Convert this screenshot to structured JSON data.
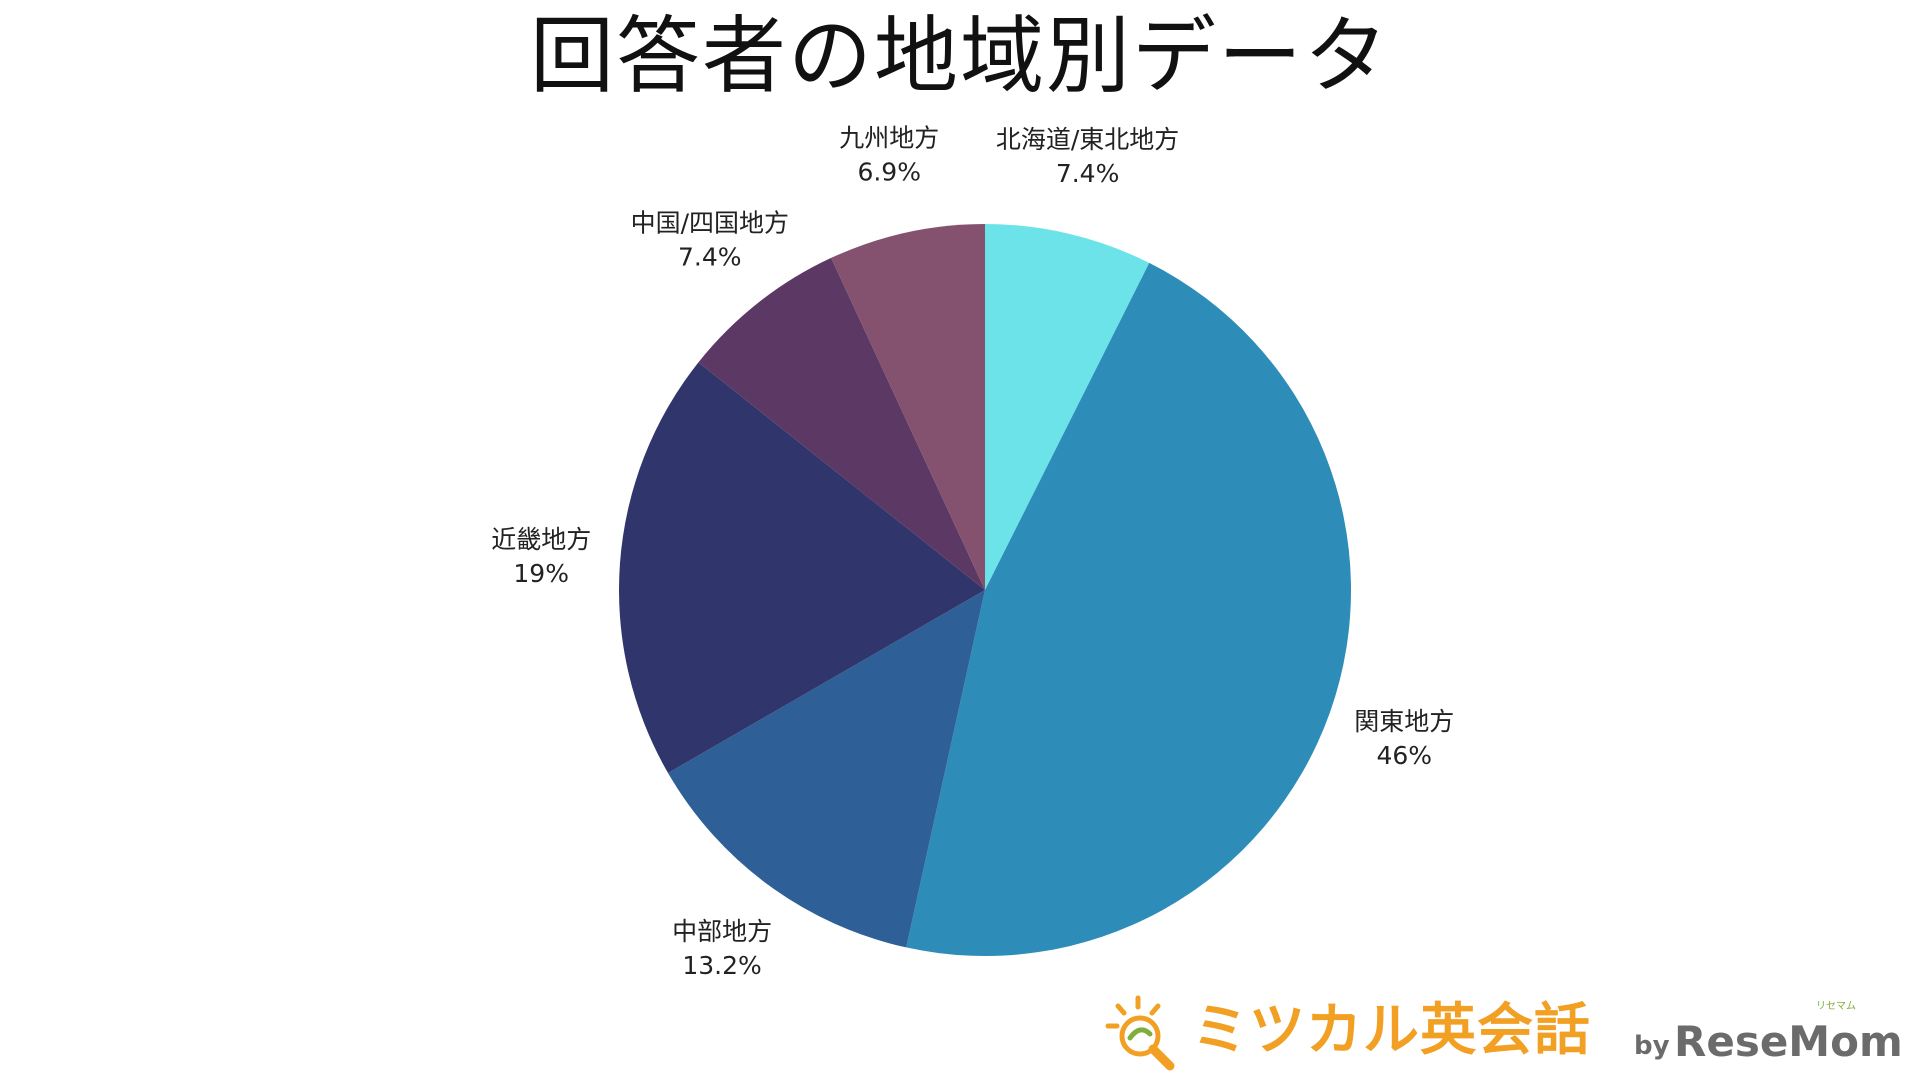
{
  "title": "回答者の地域別データ",
  "chart_data": {
    "type": "pie",
    "title": "回答者の地域別データ",
    "start_angle_deg": 0,
    "direction": "clockwise",
    "slices": [
      {
        "label": "北海道/東北地方",
        "value": 7.4,
        "value_text": "7.4%",
        "color": "#6be3e8"
      },
      {
        "label": "関東地方",
        "value": 46,
        "value_text": "46%",
        "color": "#2e8cb8"
      },
      {
        "label": "中部地方",
        "value": 13.2,
        "value_text": "13.2%",
        "color": "#2e5f96"
      },
      {
        "label": "近畿地方",
        "value": 19,
        "value_text": "19%",
        "color": "#30366b"
      },
      {
        "label": "中国/四国地方",
        "value": 7.4,
        "value_text": "7.4%",
        "color": "#5c3865"
      },
      {
        "label": "九州地方",
        "value": 6.9,
        "value_text": "6.9%",
        "color": "#84526e"
      }
    ]
  },
  "logo": {
    "brand": "ミツカル英会話",
    "by": "by",
    "resemom": "ReseMom",
    "ruby": "リセマム",
    "icon": "magnifier-icon",
    "brand_color": "#f2a024",
    "gray": "#6b6b6b",
    "green": "#7fae3a"
  }
}
